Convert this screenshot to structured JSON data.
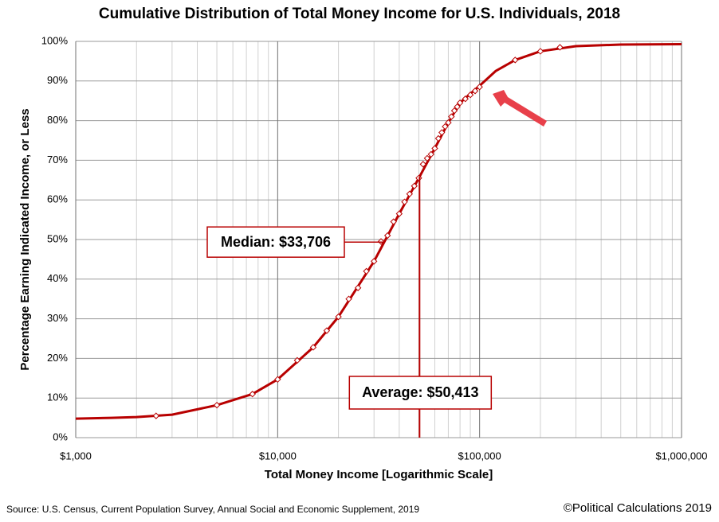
{
  "chart_data": {
    "type": "line",
    "title": "Cumulative Distribution of Total Money Income for U.S. Individuals, 2018",
    "x_label": "Total Money Income [Logarithmic Scale]",
    "y_label": "Percentage Earning Indicated Income, or Less",
    "x_log": true,
    "grid": true,
    "xlim": [
      1000,
      1000000
    ],
    "xticks": [
      {
        "value": 1000,
        "label": "$1,000"
      },
      {
        "value": 10000,
        "label": "$10,000"
      },
      {
        "value": 100000,
        "label": "$100,000"
      },
      {
        "value": 1000000,
        "label": "$1,000,000"
      }
    ],
    "xminorticks": [
      2000,
      3000,
      4000,
      5000,
      6000,
      7000,
      8000,
      9000,
      20000,
      30000,
      40000,
      50000,
      60000,
      70000,
      80000,
      90000,
      200000,
      300000,
      400000,
      500000,
      600000,
      700000,
      800000,
      900000
    ],
    "ylim": [
      0,
      100
    ],
    "yticks": [
      {
        "value": 0,
        "label": "0%"
      },
      {
        "value": 10,
        "label": "10%"
      },
      {
        "value": 20,
        "label": "20%"
      },
      {
        "value": 30,
        "label": "30%"
      },
      {
        "value": 40,
        "label": "40%"
      },
      {
        "value": 50,
        "label": "50%"
      },
      {
        "value": 60,
        "label": "60%"
      },
      {
        "value": 70,
        "label": "70%"
      },
      {
        "value": 80,
        "label": "80%"
      },
      {
        "value": 90,
        "label": "90%"
      },
      {
        "value": 100,
        "label": "100%"
      }
    ],
    "series": [
      {
        "color": "#b80000",
        "markers": false,
        "x": [
          1000,
          1500,
          2000,
          3000,
          5000,
          7500,
          10000,
          15000,
          20000,
          30000,
          40000,
          50000,
          60000,
          70000,
          80000,
          100000,
          120000,
          150000,
          200000,
          300000,
          500000,
          1000000
        ],
        "values": [
          4.8,
          5.0,
          5.2,
          5.8,
          8.2,
          11,
          14.7,
          22.8,
          30.5,
          44.5,
          56.5,
          65.5,
          73,
          79.5,
          84.5,
          88.8,
          92.5,
          95.3,
          97.5,
          98.8,
          99.2,
          99.3
        ]
      },
      {
        "color": "#b80000",
        "markers": true,
        "x": [
          2500,
          5000,
          7500,
          10000,
          12500,
          15000,
          17500,
          20000,
          22500,
          25000,
          27500,
          30000,
          32500,
          35000,
          37500,
          40000,
          42500,
          45000,
          47500,
          50000,
          52500,
          55000,
          57500,
          60000,
          62500,
          65000,
          67500,
          70000,
          72500,
          75000,
          77500,
          80000,
          85000,
          90000,
          95000,
          100000,
          150000,
          200000,
          250000
        ],
        "values": [
          5.5,
          8.2,
          11,
          14.7,
          19.5,
          22.8,
          27,
          30.5,
          35,
          37.8,
          42,
          44.5,
          49.5,
          51,
          54.5,
          56.5,
          59.5,
          61.5,
          63.5,
          65.5,
          69,
          70.5,
          71.5,
          73,
          75.5,
          77,
          78.5,
          79.5,
          81,
          82.5,
          83.5,
          84.5,
          85.5,
          86.5,
          87.5,
          88.5,
          95.3,
          97.5,
          98.5
        ]
      }
    ],
    "annotations": [
      {
        "text": "Median: $33,706",
        "x": 33706
      },
      {
        "text": "Average: $50,413",
        "x": 50413
      }
    ],
    "source": "Source: U.S. Census, Current Population Survey, Annual Social and Economic Supplement, 2019",
    "credit": "©Political Calculations 2019"
  }
}
